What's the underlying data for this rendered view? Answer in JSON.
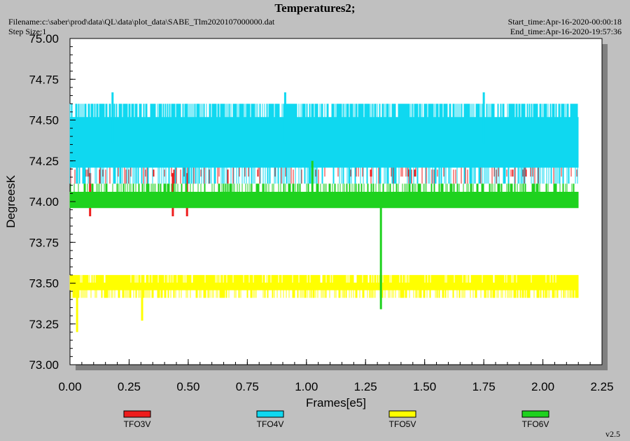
{
  "header": {
    "title": "Temperatures2;",
    "filename": "Filename:c:\\saber\\prod\\data\\QL\\data\\plot_data\\SABE_Tlm2020107000000.dat",
    "step_size": "Step Size:1",
    "start_time": "Start_time:Apr-16-2020-00:00:18",
    "end_time": "End_time:Apr-16-2020-19:57:36"
  },
  "footer": {
    "version": "v2.5"
  },
  "colors": {
    "plot_bg": "#ffffff",
    "page_bg": "#c0c0c0",
    "shadow": "#808080",
    "TFO3V": "#ee1c1c",
    "TFO4V": "#0fd8f0",
    "TFO5V": "#ffff00",
    "TFO6V": "#1ed21e"
  },
  "chart_data": {
    "type": "line",
    "title": "Temperatures2;",
    "xlabel": "Frames[e5]",
    "ylabel": "DegreesK",
    "xlim": [
      0,
      2.25
    ],
    "ylim": [
      73.0,
      75.0
    ],
    "x_ticks": [
      "0.00",
      "0.25",
      "0.50",
      "0.75",
      "1.00",
      "1.25",
      "1.50",
      "1.75",
      "2.00",
      "2.25"
    ],
    "y_ticks": [
      "73.00",
      "73.25",
      "73.50",
      "73.75",
      "74.00",
      "74.25",
      "74.50",
      "74.75",
      "75.00"
    ],
    "x_range_of_data": [
      0.0,
      2.15
    ],
    "grid": false,
    "legend_position": "bottom",
    "series": [
      {
        "name": "TFO3V",
        "color": "#ee1c1c",
        "band": [
          74.11,
          74.24
        ],
        "dips": [
          {
            "x": 0.085,
            "y": 73.91
          },
          {
            "x": 0.435,
            "y": 73.91
          },
          {
            "x": 0.495,
            "y": 73.91
          }
        ]
      },
      {
        "name": "TFO4V",
        "color": "#0fd8f0",
        "band": [
          74.11,
          74.6
        ],
        "spikes_up": [
          {
            "x": 0.18,
            "y": 74.67
          },
          {
            "x": 0.91,
            "y": 74.67
          },
          {
            "x": 1.75,
            "y": 74.67
          }
        ]
      },
      {
        "name": "TFO5V",
        "color": "#ffff00",
        "band": [
          73.41,
          73.55
        ],
        "dips": [
          {
            "x": 0.03,
            "y": 73.2
          },
          {
            "x": 0.305,
            "y": 73.27
          }
        ]
      },
      {
        "name": "TFO6V",
        "color": "#1ed21e",
        "band": [
          73.96,
          74.11
        ],
        "spikes_down": [
          {
            "x": 1.315,
            "y": 73.34
          }
        ],
        "spikes_up": [
          {
            "x": 1.025,
            "y": 74.25
          }
        ]
      }
    ]
  }
}
